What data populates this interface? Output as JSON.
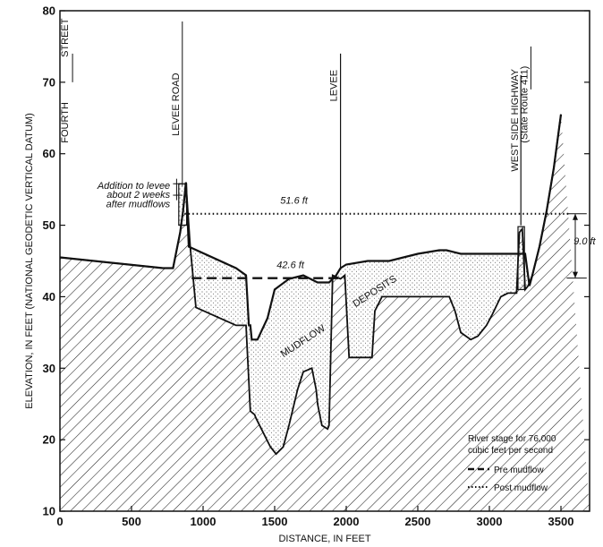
{
  "chart_data": {
    "type": "area",
    "xlabel": "DISTANCE, IN FEET",
    "ylabel": "ELEVATION, IN FEET (NATIONAL GEODETIC VERTICAL DATUM)",
    "xlim": [
      0,
      3700
    ],
    "ylim": [
      10,
      80
    ],
    "x_ticks": [
      0,
      500,
      1000,
      1500,
      2000,
      2500,
      3000,
      3500
    ],
    "y_ticks": [
      10,
      20,
      30,
      40,
      50,
      60,
      70,
      80
    ],
    "grid": false,
    "legend_position": "bottom-right",
    "legend": {
      "title": "River stage for 76,000 cubic feet per second",
      "items": [
        {
          "label": "Pre mudflow",
          "style": "dashed"
        },
        {
          "label": "Post mudflow",
          "style": "dotted"
        }
      ]
    },
    "series": [
      {
        "name": "Pre mudflow",
        "style": "dashed",
        "x": [
          920,
          1990
        ],
        "y": [
          42.6,
          42.6
        ]
      },
      {
        "name": "Post mudflow",
        "style": "dotted",
        "x": [
          870,
          3560
        ],
        "y": [
          51.6,
          51.6
        ]
      }
    ],
    "surface_profile": {
      "x": [
        0,
        720,
        790,
        810,
        840,
        860,
        880,
        900,
        1230,
        1300,
        1320,
        1330,
        1340,
        1380,
        1450,
        1500,
        1600,
        1700,
        1800,
        1880,
        1930,
        1960,
        2000,
        2150,
        2300,
        2500,
        2650,
        2700,
        2800,
        2950,
        3000,
        3100,
        3150,
        3180,
        3190,
        3250,
        3280,
        3300,
        3350,
        3400,
        3450,
        3500
      ],
      "y": [
        45.5,
        44.0,
        44.0,
        46.0,
        49.0,
        52.0,
        56.0,
        47.0,
        44.0,
        43.0,
        36.0,
        36.0,
        34.0,
        34.0,
        37.0,
        41.0,
        42.5,
        43.0,
        42.0,
        42.0,
        43.0,
        44.0,
        44.5,
        45.0,
        45.0,
        46.0,
        46.5,
        46.5,
        46.0,
        46.0,
        46.0,
        46.0,
        46.0,
        46.0,
        46.0,
        46.0,
        41.5,
        43.0,
        47.0,
        52.0,
        58.0,
        65.5
      ]
    },
    "pre_mudflow_ground": {
      "x": [
        0,
        720,
        790,
        810,
        840,
        860,
        880,
        910,
        950,
        1230,
        1300,
        1330,
        1360,
        1370,
        1420,
        1470,
        1510,
        1560,
        1600,
        1660,
        1700,
        1760,
        1790,
        1800,
        1830,
        1870,
        1880,
        1905,
        1960,
        1990,
        2020,
        2150,
        2180,
        2200,
        2250,
        2300,
        2720,
        2760,
        2800,
        2870,
        2920,
        2980,
        3020,
        3080,
        3130,
        3190,
        3200,
        3210,
        3230,
        3250,
        3270,
        3300,
        3350,
        3400,
        3450,
        3500
      ],
      "y": [
        45.5,
        44.0,
        44.0,
        46.0,
        49.0,
        52.0,
        56.0,
        47.0,
        38.5,
        36.0,
        36.0,
        24.0,
        23.5,
        23.0,
        21.0,
        19.0,
        18.0,
        19.0,
        22.0,
        27.0,
        29.5,
        30.0,
        27.0,
        25.0,
        22.0,
        21.5,
        22.0,
        43.0,
        42.5,
        43.0,
        31.5,
        31.5,
        31.5,
        38.0,
        40.0,
        40.0,
        40.0,
        38.0,
        35.0,
        34.0,
        34.5,
        36.0,
        37.5,
        40.0,
        40.5,
        40.5,
        45.0,
        49.0,
        49.5,
        41.0,
        41.5,
        43.0,
        47.0,
        52.0,
        58.0,
        65.5
      ]
    },
    "annotations": {
      "fourth_street": "FOURTH",
      "fourth_street_2": "STREET",
      "levee_road": "LEVEE ROAD",
      "levee": "LEVEE",
      "west_side_highway": "WEST SIDE HIGHWAY",
      "state_route": "(State Route 411)",
      "addition_1": "Addition to levee",
      "addition_2": "about 2 weeks",
      "addition_3": "after mudflows",
      "post_level": "51.6 ft",
      "pre_level": "42.6 ft",
      "difference": "9.0 ft",
      "mudflow": "MUDFLOW",
      "deposits": "DEPOSITS"
    }
  }
}
